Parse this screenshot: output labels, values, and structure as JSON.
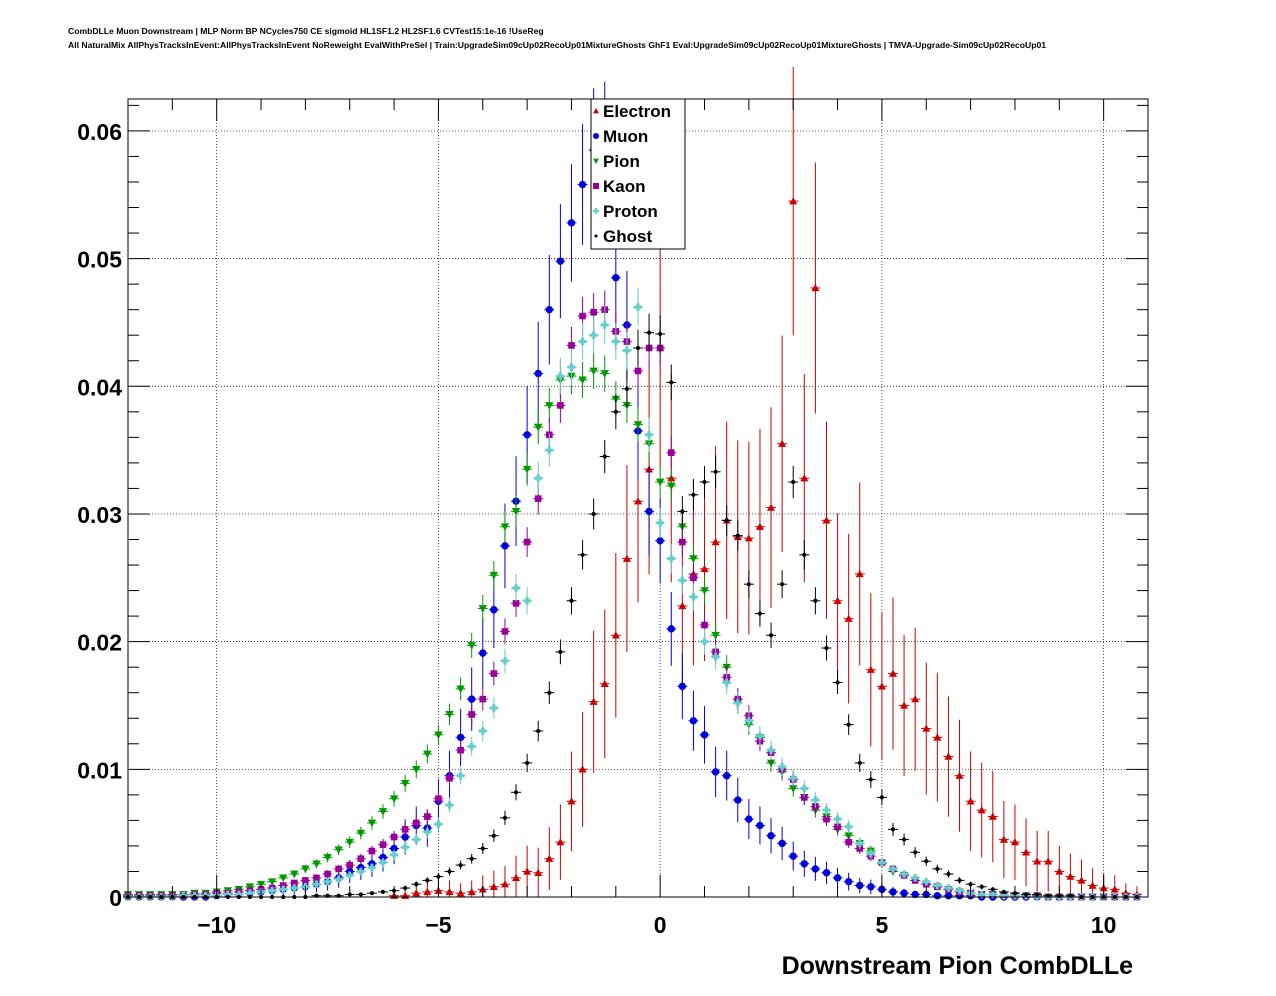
{
  "header": {
    "line1": "CombDLLe Muon Downstream | MLP Norm BP NCycles750 CE sigmoid HL1SF1.2 HL2SF1.6 CVTest15:1e-16 !UseReg",
    "line2": "All NaturalMix AllPhysTracksInEvent:AllPhysTracksInEvent NoReweight EvalWithPreSel | Train:UpgradeSim09cUp02RecoUp01MixtureGhosts GhF1 Eval:UpgradeSim09cUp02RecoUp01MixtureGhosts | TMVA-Upgrade-Sim09cUp02RecoUp01"
  },
  "chart_data": {
    "type": "scatter",
    "title": "",
    "xlabel": "Downstream Pion CombDLLe",
    "ylabel": "",
    "xlim": [
      -12,
      11
    ],
    "ylim": [
      0,
      0.0625
    ],
    "x_ticks": [
      -10,
      -5,
      0,
      5,
      10
    ],
    "x_tick_labels": [
      "−10",
      "−5",
      "0",
      "5",
      "10"
    ],
    "y_ticks": [
      0,
      0.01,
      0.02,
      0.03,
      0.04,
      0.05,
      0.06
    ],
    "y_tick_labels": [
      "0",
      "0.01",
      "0.02",
      "0.03",
      "0.04",
      "0.05",
      "0.06"
    ],
    "grid": true,
    "legend_position": "top-center",
    "series": [
      {
        "name": "Electron",
        "color": "#cc0000",
        "marker": "triangle-up",
        "errors": "large",
        "x": [
          -6,
          -5.75,
          -5.5,
          -5.25,
          -5,
          -4.75,
          -4.5,
          -4.25,
          -4,
          -3.75,
          -3.5,
          -3.25,
          -3,
          -2.75,
          -2.5,
          -2.25,
          -2,
          -1.75,
          -1.5,
          -1.25,
          -1,
          -0.75,
          -0.5,
          -0.25,
          0,
          0.25,
          0.5,
          0.75,
          1,
          1.25,
          1.5,
          1.75,
          2,
          2.25,
          2.5,
          2.75,
          3,
          3.25,
          3.5,
          3.75,
          4,
          4.25,
          4.5,
          4.75,
          5,
          5.25,
          5.5,
          5.75,
          6,
          6.25,
          6.5,
          6.75,
          7,
          7.25,
          7.5,
          7.75,
          8,
          8.25,
          8.5,
          8.75,
          9,
          9.25,
          9.5,
          9.75,
          10,
          10.25,
          10.5,
          10.75
        ],
        "y": [
          0.0001,
          0.0001,
          0.0003,
          0.0004,
          0.0005,
          0.0004,
          0.0003,
          0.0004,
          0.0006,
          0.0008,
          0.001,
          0.0015,
          0.002,
          0.0019,
          0.003,
          0.0043,
          0.0075,
          0.01,
          0.0153,
          0.0167,
          0.0205,
          0.0265,
          0.031,
          0.0335,
          0.043,
          0.0328,
          0.0228,
          0.0253,
          0.0257,
          0.0278,
          0.0295,
          0.0282,
          0.0281,
          0.029,
          0.0305,
          0.0355,
          0.0545,
          0.0328,
          0.0477,
          0.0295,
          0.0232,
          0.0218,
          0.0253,
          0.0178,
          0.0165,
          0.0175,
          0.015,
          0.0155,
          0.0132,
          0.0125,
          0.011,
          0.0095,
          0.0075,
          0.0068,
          0.0063,
          0.0045,
          0.0043,
          0.0035,
          0.0028,
          0.0028,
          0.002,
          0.0016,
          0.0013,
          0.0009,
          0.0007,
          0.0006,
          0.0003,
          0.0002
        ]
      },
      {
        "name": "Muon",
        "color": "#0000dd",
        "marker": "circle",
        "errors": "medium",
        "x": [
          -12,
          -11.75,
          -11.5,
          -11.25,
          -11,
          -10.75,
          -10.5,
          -10.25,
          -10,
          -9.75,
          -9.5,
          -9.25,
          -9,
          -8.75,
          -8.5,
          -8.25,
          -8,
          -7.75,
          -7.5,
          -7.25,
          -7,
          -6.75,
          -6.5,
          -6.25,
          -6,
          -5.75,
          -5.5,
          -5.25,
          -5,
          -4.75,
          -4.5,
          -4.25,
          -4,
          -3.75,
          -3.5,
          -3.25,
          -3,
          -2.75,
          -2.5,
          -2.25,
          -2,
          -1.75,
          -1.5,
          -1.25,
          -1,
          -0.75,
          -0.5,
          -0.25,
          0,
          0.25,
          0.5,
          0.75,
          1,
          1.25,
          1.5,
          1.75,
          2,
          2.25,
          2.5,
          2.75,
          3,
          3.25,
          3.5,
          3.75,
          4,
          4.25,
          4.5,
          4.75,
          5,
          5.25,
          5.5,
          5.75,
          6,
          6.25,
          6.5,
          6.75,
          7,
          7.25,
          7.5,
          7.75,
          8,
          8.25,
          8.5,
          8.75,
          9,
          9.25,
          9.5,
          9.75,
          10,
          10.25,
          10.5,
          10.75
        ],
        "y": [
          0,
          0,
          0,
          0,
          0,
          0,
          0,
          0,
          0.0001,
          0.0002,
          0.0002,
          0.0003,
          0.0004,
          0.0005,
          0.0006,
          0.0007,
          0.0008,
          0.001,
          0.0012,
          0.0015,
          0.002,
          0.0023,
          0.0026,
          0.0031,
          0.0038,
          0.0047,
          0.0056,
          0.0054,
          0.0075,
          0.0095,
          0.0125,
          0.0155,
          0.0191,
          0.0225,
          0.0275,
          0.031,
          0.0362,
          0.041,
          0.046,
          0.0498,
          0.0528,
          0.0558,
          0.0585,
          0.059,
          0.0485,
          0.0448,
          0.0365,
          0.0302,
          0.0279,
          0.021,
          0.0165,
          0.0138,
          0.0127,
          0.0098,
          0.0095,
          0.0076,
          0.0061,
          0.0056,
          0.0048,
          0.0042,
          0.0032,
          0.0026,
          0.0022,
          0.0019,
          0.0015,
          0.0012,
          0.0009,
          0.0008,
          0.0006,
          0.0004,
          0.0003,
          0.0002,
          0.0002,
          0.0001,
          0.0001,
          0.0001,
          0.0001,
          0,
          0,
          0,
          0,
          0,
          0,
          0,
          0,
          0,
          0,
          0,
          0,
          0,
          0,
          0
        ]
      },
      {
        "name": "Pion",
        "color": "#009900",
        "marker": "triangle-down",
        "errors": "small",
        "x": [
          -12,
          -11.75,
          -11.5,
          -11.25,
          -11,
          -10.75,
          -10.5,
          -10.25,
          -10,
          -9.75,
          -9.5,
          -9.25,
          -9,
          -8.75,
          -8.5,
          -8.25,
          -8,
          -7.75,
          -7.5,
          -7.25,
          -7,
          -6.75,
          -6.5,
          -6.25,
          -6,
          -5.75,
          -5.5,
          -5.25,
          -5,
          -4.75,
          -4.5,
          -4.25,
          -4,
          -3.75,
          -3.5,
          -3.25,
          -3,
          -2.75,
          -2.5,
          -2.25,
          -2,
          -1.75,
          -1.5,
          -1.25,
          -1,
          -0.75,
          -0.5,
          -0.25,
          0,
          0.25,
          0.5,
          0.75,
          1,
          1.25,
          1.5,
          1.75,
          2,
          2.25,
          2.5,
          2.75,
          3,
          3.25,
          3.5,
          3.75,
          4,
          4.25,
          4.5,
          4.75,
          5,
          5.25,
          5.5,
          5.75,
          6,
          6.25,
          6.5,
          6.75,
          7,
          7.25,
          7.5,
          7.75,
          8,
          8.25,
          8.5,
          8.75,
          9,
          9.25,
          9.5,
          9.75,
          10,
          10.25,
          10.5,
          10.75
        ],
        "y": [
          0.0002,
          0.0002,
          0.0002,
          0.0002,
          0.0002,
          0.0002,
          0.0003,
          0.0003,
          0.0004,
          0.0005,
          0.0006,
          0.0008,
          0.001,
          0.0012,
          0.0015,
          0.0018,
          0.0022,
          0.0026,
          0.0031,
          0.0037,
          0.0043,
          0.005,
          0.0058,
          0.0067,
          0.0077,
          0.0089,
          0.01,
          0.0112,
          0.0127,
          0.0143,
          0.0163,
          0.0197,
          0.0226,
          0.0252,
          0.029,
          0.0302,
          0.0335,
          0.0368,
          0.0385,
          0.0405,
          0.0408,
          0.0405,
          0.0412,
          0.041,
          0.039,
          0.0385,
          0.037,
          0.0355,
          0.0325,
          0.0322,
          0.029,
          0.0265,
          0.024,
          0.0205,
          0.018,
          0.0152,
          0.0135,
          0.0125,
          0.0105,
          0.0098,
          0.0085,
          0.0078,
          0.0068,
          0.0063,
          0.0053,
          0.0048,
          0.0042,
          0.0036,
          0.0026,
          0.002,
          0.0017,
          0.0013,
          0.001,
          0.0008,
          0.0006,
          0.0004,
          0.0003,
          0.0002,
          0.0002,
          0.0001,
          0.0001,
          0.0001,
          0.0001,
          0,
          0,
          0,
          0,
          0,
          0,
          0,
          0,
          0
        ]
      },
      {
        "name": "Kaon",
        "color": "#990099",
        "marker": "square",
        "errors": "small",
        "x": [
          -12,
          -11.75,
          -11.5,
          -11.25,
          -11,
          -10.75,
          -10.5,
          -10.25,
          -10,
          -9.75,
          -9.5,
          -9.25,
          -9,
          -8.75,
          -8.5,
          -8.25,
          -8,
          -7.75,
          -7.5,
          -7.25,
          -7,
          -6.75,
          -6.5,
          -6.25,
          -6,
          -5.75,
          -5.5,
          -5.25,
          -5,
          -4.75,
          -4.5,
          -4.25,
          -4,
          -3.75,
          -3.5,
          -3.25,
          -3,
          -2.75,
          -2.5,
          -2.25,
          -2,
          -1.75,
          -1.5,
          -1.25,
          -1,
          -0.75,
          -0.5,
          -0.25,
          0,
          0.25,
          0.5,
          0.75,
          1,
          1.25,
          1.5,
          1.75,
          2,
          2.25,
          2.5,
          2.75,
          3,
          3.25,
          3.5,
          3.75,
          4,
          4.25,
          4.5,
          4.75,
          5,
          5.25,
          5.5,
          5.75,
          6,
          6.25,
          6.5,
          6.75,
          7,
          7.25,
          7.5,
          7.75,
          8,
          8.25,
          8.5,
          8.75,
          9,
          9.25,
          9.5,
          9.75,
          10,
          10.25,
          10.5,
          10.75
        ],
        "y": [
          0.0001,
          0.0001,
          0.0001,
          0.0001,
          0.0001,
          0.0001,
          0.0002,
          0.0002,
          0.0003,
          0.0003,
          0.0004,
          0.0005,
          0.0006,
          0.0007,
          0.0009,
          0.0011,
          0.0013,
          0.0015,
          0.0018,
          0.0022,
          0.0025,
          0.003,
          0.0036,
          0.0041,
          0.0047,
          0.0053,
          0.0058,
          0.0063,
          0.0077,
          0.0093,
          0.0115,
          0.0143,
          0.0155,
          0.0175,
          0.0208,
          0.023,
          0.0278,
          0.0312,
          0.0362,
          0.0385,
          0.0432,
          0.0455,
          0.0458,
          0.046,
          0.0443,
          0.0435,
          0.0412,
          0.043,
          0.043,
          0.0348,
          0.0278,
          0.025,
          0.0213,
          0.0192,
          0.0172,
          0.0155,
          0.0142,
          0.0122,
          0.0113,
          0.01,
          0.0092,
          0.0078,
          0.0071,
          0.0061,
          0.0055,
          0.0043,
          0.0038,
          0.0032,
          0.0027,
          0.0022,
          0.0017,
          0.0013,
          0.001,
          0.0008,
          0.0006,
          0.0004,
          0.0003,
          0.0002,
          0.0002,
          0.0001,
          0.0001,
          0.0001,
          0.0001,
          0,
          0,
          0,
          0,
          0,
          0,
          0,
          0,
          0
        ]
      },
      {
        "name": "Proton",
        "color": "#66cccc",
        "marker": "plus",
        "errors": "small",
        "x": [
          -12,
          -11.75,
          -11.5,
          -11.25,
          -11,
          -10.75,
          -10.5,
          -10.25,
          -10,
          -9.75,
          -9.5,
          -9.25,
          -9,
          -8.75,
          -8.5,
          -8.25,
          -8,
          -7.75,
          -7.5,
          -7.25,
          -7,
          -6.75,
          -6.5,
          -6.25,
          -6,
          -5.75,
          -5.5,
          -5.25,
          -5,
          -4.75,
          -4.5,
          -4.25,
          -4,
          -3.75,
          -3.5,
          -3.25,
          -3,
          -2.75,
          -2.5,
          -2.25,
          -2,
          -1.75,
          -1.5,
          -1.25,
          -1,
          -0.75,
          -0.5,
          -0.25,
          0,
          0.25,
          0.5,
          0.75,
          1,
          1.25,
          1.5,
          1.75,
          2,
          2.25,
          2.5,
          2.75,
          3,
          3.25,
          3.5,
          3.75,
          4,
          4.25,
          4.5,
          4.75,
          5,
          5.25,
          5.5,
          5.75,
          6,
          6.25,
          6.5,
          6.75,
          7,
          7.25,
          7.5,
          7.75,
          8,
          8.25,
          8.5,
          8.75,
          9,
          9.25,
          9.5,
          9.75,
          10,
          10.25,
          10.5,
          10.75
        ],
        "y": [
          0,
          0,
          0,
          0,
          0,
          0.0001,
          0.0001,
          0.0001,
          0.0001,
          0.0002,
          0.0002,
          0.0003,
          0.0004,
          0.0005,
          0.0006,
          0.0007,
          0.0008,
          0.001,
          0.0012,
          0.0014,
          0.0017,
          0.002,
          0.0023,
          0.0027,
          0.0033,
          0.0039,
          0.0045,
          0.0051,
          0.0057,
          0.0072,
          0.0095,
          0.0118,
          0.013,
          0.0148,
          0.0185,
          0.0242,
          0.0232,
          0.0328,
          0.035,
          0.0408,
          0.0415,
          0.0435,
          0.044,
          0.0448,
          0.0435,
          0.0428,
          0.0462,
          0.0362,
          0.0293,
          0.0265,
          0.0248,
          0.0235,
          0.02,
          0.0188,
          0.0168,
          0.0152,
          0.0138,
          0.0126,
          0.0115,
          0.0102,
          0.0093,
          0.0085,
          0.0076,
          0.0068,
          0.0061,
          0.0055,
          0.0042,
          0.0034,
          0.0027,
          0.0022,
          0.0018,
          0.0015,
          0.0012,
          0.0009,
          0.0007,
          0.0005,
          0.0003,
          0.0002,
          0.0002,
          0.0001,
          0.0001,
          0.0001,
          0,
          0,
          0,
          0,
          0,
          0,
          0,
          0,
          0,
          0
        ]
      },
      {
        "name": "Ghost",
        "color": "#000000",
        "marker": "dot",
        "errors": "small",
        "x": [
          -12,
          -11.75,
          -11.5,
          -11.25,
          -11,
          -10.75,
          -10.5,
          -10.25,
          -10,
          -9.75,
          -9.5,
          -9.25,
          -9,
          -8.75,
          -8.5,
          -8.25,
          -8,
          -7.75,
          -7.5,
          -7.25,
          -7,
          -6.75,
          -6.5,
          -6.25,
          -6,
          -5.75,
          -5.5,
          -5.25,
          -5,
          -4.75,
          -4.5,
          -4.25,
          -4,
          -3.75,
          -3.5,
          -3.25,
          -3,
          -2.75,
          -2.5,
          -2.25,
          -2,
          -1.75,
          -1.5,
          -1.25,
          -1,
          -0.75,
          -0.5,
          -0.25,
          0,
          0.25,
          0.5,
          0.75,
          1,
          1.25,
          1.5,
          1.75,
          2,
          2.25,
          2.5,
          2.75,
          3,
          3.25,
          3.5,
          3.75,
          4,
          4.25,
          4.5,
          4.75,
          5,
          5.25,
          5.5,
          5.75,
          6,
          6.25,
          6.5,
          6.75,
          7,
          7.25,
          7.5,
          7.75,
          8,
          8.25,
          8.5,
          8.75,
          9,
          9.25,
          9.5,
          9.75,
          10,
          10.25,
          10.5,
          10.75
        ],
        "y": [
          0,
          0,
          0,
          0,
          0,
          0,
          0,
          0,
          0,
          0,
          0,
          0,
          0,
          0,
          0,
          0,
          0,
          0.0001,
          0.0001,
          0.0001,
          0.0002,
          0.0002,
          0.0003,
          0.0004,
          0.0005,
          0.0007,
          0.001,
          0.0013,
          0.0016,
          0.002,
          0.0025,
          0.003,
          0.0038,
          0.0048,
          0.0062,
          0.0082,
          0.0105,
          0.013,
          0.016,
          0.0192,
          0.0232,
          0.0268,
          0.03,
          0.0345,
          0.038,
          0.0398,
          0.043,
          0.0442,
          0.0441,
          0.0403,
          0.0302,
          0.0315,
          0.0325,
          0.0333,
          0.0295,
          0.0283,
          0.0245,
          0.0222,
          0.0205,
          0.0245,
          0.0325,
          0.0268,
          0.0232,
          0.0195,
          0.0168,
          0.0135,
          0.0105,
          0.0092,
          0.0078,
          0.0053,
          0.0045,
          0.0035,
          0.0028,
          0.0022,
          0.0018,
          0.0013,
          0.001,
          0.0008,
          0.0006,
          0.0004,
          0.0003,
          0.0002,
          0.0002,
          0.0001,
          0.0001,
          0.0001,
          0,
          0,
          0,
          0,
          0,
          0
        ]
      }
    ]
  }
}
